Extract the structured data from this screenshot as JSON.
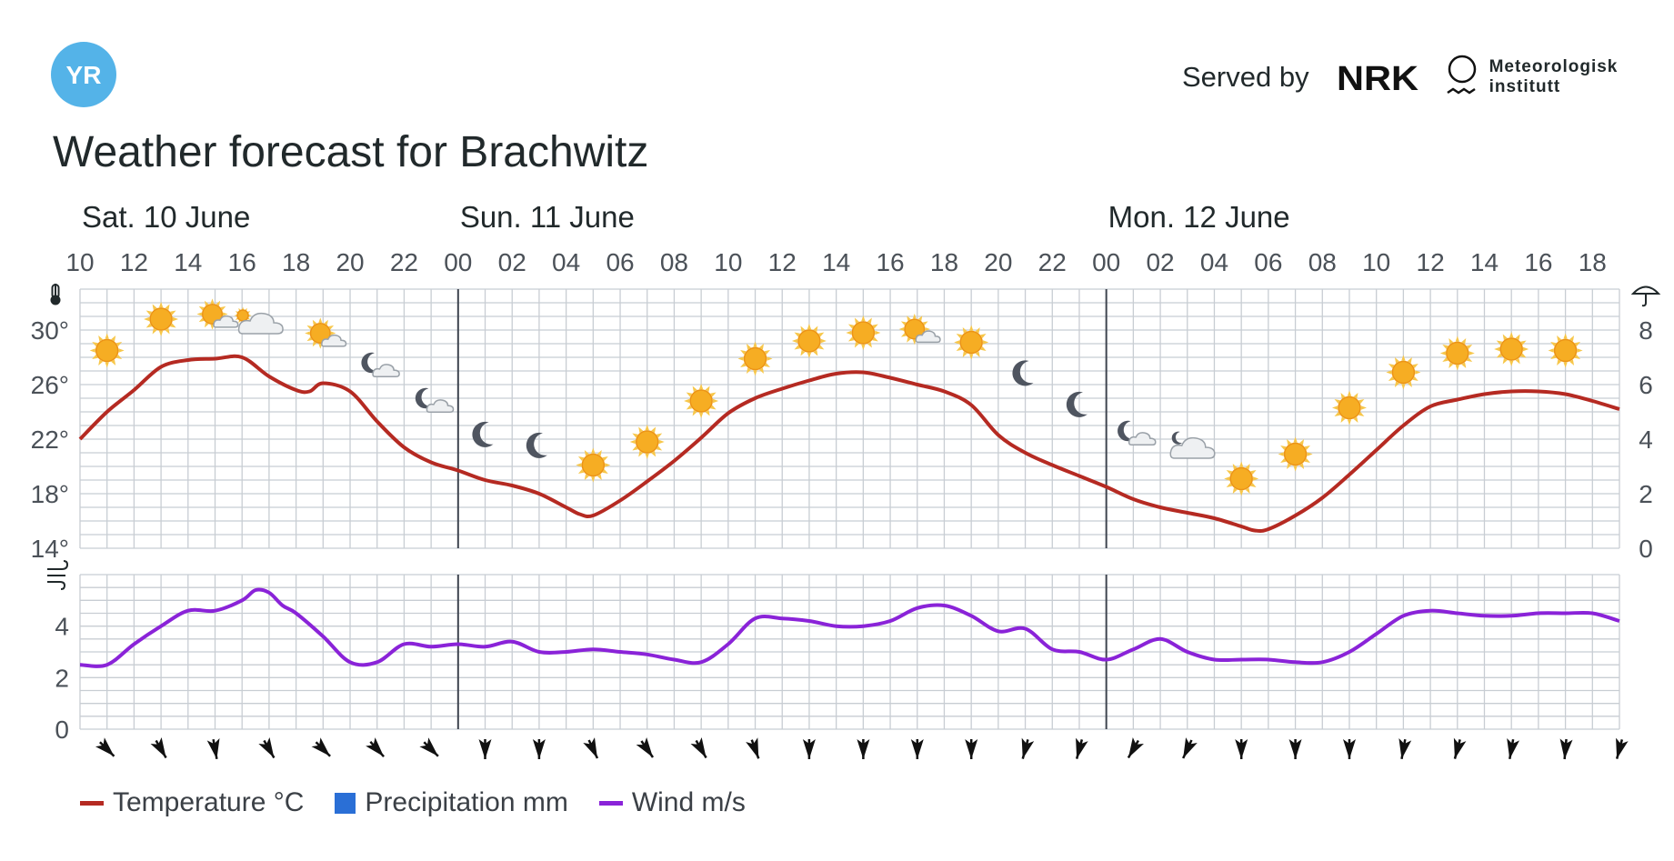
{
  "header": {
    "logo_text": "YR",
    "served_by": "Served by",
    "partner_nrk": "NRK",
    "partner_met_line1": "Meteorologisk",
    "partner_met_line2": "institutt"
  },
  "title": "Weather forecast for Brachwitz",
  "colors": {
    "temperature": "#b52a22",
    "precipitation": "#2a6fd6",
    "wind": "#8a23d8",
    "grid": "#c8cdd3",
    "logo": "#54b3e8"
  },
  "legend": [
    {
      "label": "Temperature °C",
      "color": "#b52a22",
      "shape": "line"
    },
    {
      "label": "Precipitation mm",
      "color": "#2a6fd6",
      "shape": "box"
    },
    {
      "label": "Wind m/s",
      "color": "#8a23d8",
      "shape": "line"
    }
  ],
  "chart_data": {
    "type": "line",
    "days": [
      {
        "label": "Sat. 10 June",
        "start_hour": 10
      },
      {
        "label": "Sun. 11 June",
        "start_hour": 24
      },
      {
        "label": "Mon. 12 June",
        "start_hour": 48
      }
    ],
    "x_range_hours": [
      10,
      67
    ],
    "hour_ticks": [
      "10",
      "12",
      "14",
      "16",
      "18",
      "20",
      "22",
      "00",
      "02",
      "04",
      "06",
      "08",
      "10",
      "12",
      "14",
      "16",
      "18",
      "20",
      "22",
      "00",
      "02",
      "04",
      "06",
      "08",
      "10",
      "12",
      "14",
      "16",
      "18"
    ],
    "temperature": {
      "name": "Temperature °C",
      "axis_icon": "thermometer-icon",
      "ylim": [
        14,
        33
      ],
      "ticks": [
        "14°",
        "18°",
        "22°",
        "26°",
        "30°"
      ],
      "x": [
        10,
        11,
        12,
        13,
        14,
        15,
        16,
        17,
        18,
        18.5,
        19,
        20,
        21,
        22,
        23,
        24,
        25,
        26,
        27,
        28,
        28.5,
        29,
        30,
        31,
        32,
        33,
        34,
        35,
        36,
        37,
        38,
        39,
        40,
        41,
        42,
        43,
        44,
        45,
        46,
        47,
        48,
        49,
        50,
        51,
        52,
        53,
        53.5,
        54,
        55,
        56,
        57,
        58,
        59,
        60,
        61,
        62,
        63,
        64,
        65,
        66,
        67
      ],
      "values": [
        22,
        24,
        25.6,
        27.3,
        27.8,
        27.9,
        28,
        26.6,
        25.6,
        25.5,
        26.1,
        25.5,
        23.3,
        21.4,
        20.3,
        19.7,
        19,
        18.6,
        18,
        17,
        16.5,
        16.4,
        17.5,
        18.9,
        20.4,
        22.1,
        23.9,
        25,
        25.7,
        26.3,
        26.8,
        26.9,
        26.5,
        26,
        25.5,
        24.5,
        22.3,
        21,
        20.1,
        19.3,
        18.5,
        17.6,
        17,
        16.6,
        16.2,
        15.6,
        15.3,
        15.4,
        16.4,
        17.7,
        19.4,
        21.2,
        23,
        24.4,
        24.9,
        25.3,
        25.5,
        25.5,
        25.3,
        24.8,
        24.2
      ]
    },
    "precipitation": {
      "name": "Precipitation mm",
      "axis_icon": "umbrella-icon",
      "ylim": [
        0,
        9.5
      ],
      "ticks": [
        "0",
        "2",
        "4",
        "6",
        "8"
      ],
      "values": []
    },
    "weather_symbols": [
      {
        "hour": 11,
        "symbol": "sun",
        "temperature": 28.5
      },
      {
        "hour": 13,
        "symbol": "sun",
        "temperature": 30.8
      },
      {
        "hour": 15,
        "symbol": "sun-cloud",
        "temperature": 30.9
      },
      {
        "hour": 16.5,
        "symbol": "sun-cloud-large",
        "temperature": 30.4
      },
      {
        "hour": 19,
        "symbol": "sun-cloud",
        "temperature": 29.5
      },
      {
        "hour": 21,
        "symbol": "moon-cloud",
        "temperature": 27.3
      },
      {
        "hour": 23,
        "symbol": "moon-cloud",
        "temperature": 24.7
      },
      {
        "hour": 25,
        "symbol": "moon",
        "temperature": 22.3
      },
      {
        "hour": 27,
        "symbol": "moon",
        "temperature": 21.5
      },
      {
        "hour": 29,
        "symbol": "sun",
        "temperature": 20.1
      },
      {
        "hour": 31,
        "symbol": "sun",
        "temperature": 21.8
      },
      {
        "hour": 33,
        "symbol": "sun",
        "temperature": 24.8
      },
      {
        "hour": 35,
        "symbol": "sun",
        "temperature": 27.9
      },
      {
        "hour": 37,
        "symbol": "sun",
        "temperature": 29.2
      },
      {
        "hour": 39,
        "symbol": "sun",
        "temperature": 29.8
      },
      {
        "hour": 41,
        "symbol": "sun-cloud",
        "temperature": 29.8
      },
      {
        "hour": 43,
        "symbol": "sun",
        "temperature": 29.1
      },
      {
        "hour": 45,
        "symbol": "moon",
        "temperature": 26.8
      },
      {
        "hour": 47,
        "symbol": "moon",
        "temperature": 24.5
      },
      {
        "hour": 49,
        "symbol": "moon-cloud",
        "temperature": 22.3
      },
      {
        "hour": 51,
        "symbol": "moon-cloud-large",
        "temperature": 21.4
      },
      {
        "hour": 53,
        "symbol": "sun",
        "temperature": 19.1
      },
      {
        "hour": 55,
        "symbol": "sun",
        "temperature": 20.9
      },
      {
        "hour": 57,
        "symbol": "sun",
        "temperature": 24.3
      },
      {
        "hour": 59,
        "symbol": "sun",
        "temperature": 26.9
      },
      {
        "hour": 61,
        "symbol": "sun",
        "temperature": 28.3
      },
      {
        "hour": 63,
        "symbol": "sun",
        "temperature": 28.6
      },
      {
        "hour": 65,
        "symbol": "sun",
        "temperature": 28.5
      }
    ],
    "wind": {
      "name": "Wind m/s",
      "axis_icon": "wind-icon",
      "ylim": [
        0,
        6
      ],
      "ticks": [
        "0",
        "2",
        "4"
      ],
      "x": [
        10,
        11,
        12,
        13,
        14,
        15,
        16,
        16.5,
        17,
        17.5,
        18,
        19,
        20,
        21,
        22,
        23,
        24,
        25,
        26,
        27,
        28,
        29,
        30,
        31,
        32,
        33,
        34,
        35,
        36,
        37,
        38,
        39,
        40,
        41,
        42,
        43,
        44,
        45,
        46,
        47,
        48,
        49,
        50,
        51,
        52,
        53,
        54,
        55,
        56,
        57,
        58,
        59,
        60,
        61,
        62,
        63,
        64,
        65,
        66,
        67
      ],
      "values": [
        2.5,
        2.5,
        3.3,
        4,
        4.6,
        4.6,
        5,
        5.4,
        5.3,
        4.8,
        4.5,
        3.6,
        2.6,
        2.6,
        3.3,
        3.2,
        3.3,
        3.2,
        3.4,
        3,
        3,
        3.1,
        3,
        2.9,
        2.7,
        2.6,
        3.3,
        4.3,
        4.3,
        4.2,
        4,
        4,
        4.2,
        4.7,
        4.8,
        4.4,
        3.8,
        3.9,
        3.1,
        3,
        2.7,
        3.1,
        3.5,
        3,
        2.7,
        2.7,
        2.7,
        2.6,
        2.6,
        3,
        3.7,
        4.4,
        4.6,
        4.5,
        4.4,
        4.4,
        4.5,
        4.5,
        4.5,
        4.2
      ]
    },
    "wind_directions": [
      {
        "hour": 11,
        "blowing_toward": 225
      },
      {
        "hour": 13,
        "blowing_toward": 240
      },
      {
        "hour": 15,
        "blowing_toward": 260
      },
      {
        "hour": 17,
        "blowing_toward": 240
      },
      {
        "hour": 19,
        "blowing_toward": 225
      },
      {
        "hour": 21,
        "blowing_toward": 228
      },
      {
        "hour": 23,
        "blowing_toward": 225
      },
      {
        "hour": 25,
        "blowing_toward": 270
      },
      {
        "hour": 27,
        "blowing_toward": 270
      },
      {
        "hour": 29,
        "blowing_toward": 245
      },
      {
        "hour": 31,
        "blowing_toward": 235
      },
      {
        "hour": 33,
        "blowing_toward": 240
      },
      {
        "hour": 35,
        "blowing_toward": 250
      },
      {
        "hour": 37,
        "blowing_toward": 270
      },
      {
        "hour": 39,
        "blowing_toward": 270
      },
      {
        "hour": 41,
        "blowing_toward": 270
      },
      {
        "hour": 43,
        "blowing_toward": 270
      },
      {
        "hour": 45,
        "blowing_toward": 285
      },
      {
        "hour": 47,
        "blowing_toward": 285
      },
      {
        "hour": 49,
        "blowing_toward": 300
      },
      {
        "hour": 51,
        "blowing_toward": 295
      },
      {
        "hour": 53,
        "blowing_toward": 270
      },
      {
        "hour": 55,
        "blowing_toward": 270
      },
      {
        "hour": 57,
        "blowing_toward": 270
      },
      {
        "hour": 59,
        "blowing_toward": 280
      },
      {
        "hour": 61,
        "blowing_toward": 285
      },
      {
        "hour": 63,
        "blowing_toward": 280
      },
      {
        "hour": 65,
        "blowing_toward": 275
      },
      {
        "hour": 67,
        "blowing_toward": 285
      }
    ]
  }
}
